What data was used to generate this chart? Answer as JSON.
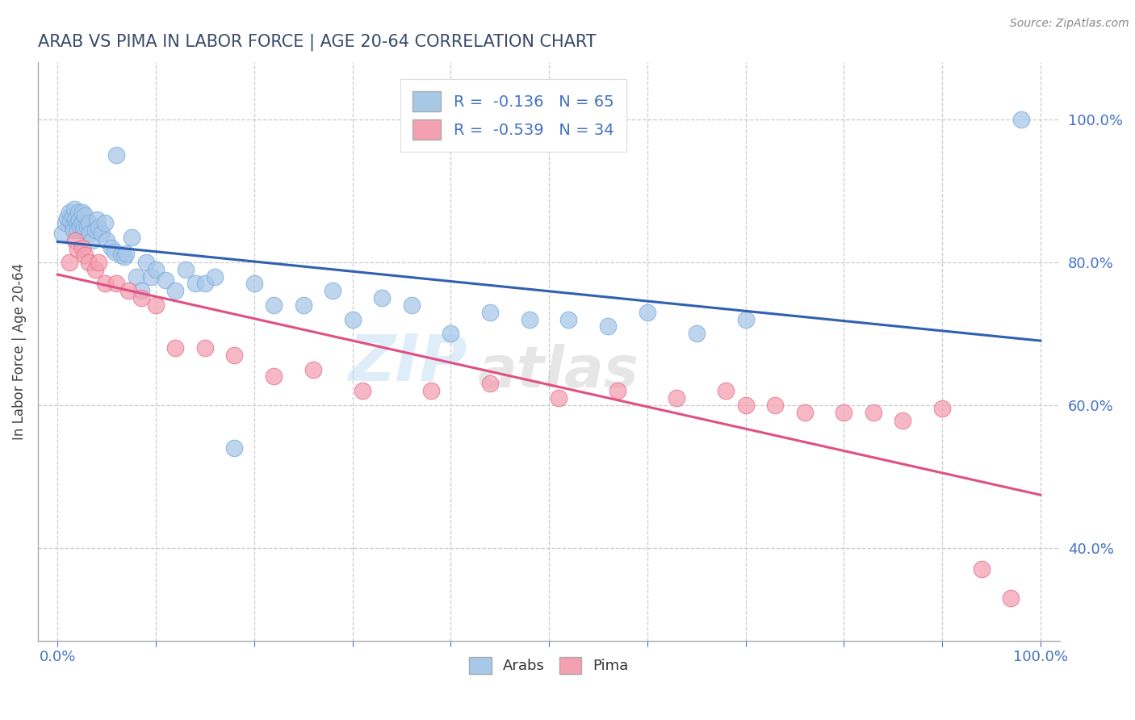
{
  "title": "ARAB VS PIMA IN LABOR FORCE | AGE 20-64 CORRELATION CHART",
  "source": "Source: ZipAtlas.com",
  "ylabel": "In Labor Force | Age 20-64",
  "xlim": [
    -0.02,
    1.02
  ],
  "ylim": [
    0.27,
    1.08
  ],
  "arab_R": -0.136,
  "arab_N": 65,
  "pima_R": -0.539,
  "pima_N": 34,
  "arab_color": "#a8c8e8",
  "pima_color": "#f4a0b0",
  "arab_edge_color": "#7aace0",
  "pima_edge_color": "#e87090",
  "arab_line_color": "#3060b0",
  "pima_line_color": "#e05080",
  "background_color": "#ffffff",
  "grid_color": "#cccccc",
  "title_color": "#3a4a6a",
  "axis_label_color": "#444444",
  "tick_label_color": "#4472c4",
  "arab_x": [
    0.005,
    0.008,
    0.01,
    0.012,
    0.013,
    0.015,
    0.015,
    0.016,
    0.017,
    0.018,
    0.02,
    0.02,
    0.021,
    0.022,
    0.023,
    0.025,
    0.025,
    0.026,
    0.027,
    0.028,
    0.03,
    0.032,
    0.033,
    0.035,
    0.038,
    0.04,
    0.042,
    0.045,
    0.048,
    0.05,
    0.055,
    0.058,
    0.06,
    0.065,
    0.068,
    0.07,
    0.075,
    0.08,
    0.085,
    0.09,
    0.095,
    0.1,
    0.11,
    0.12,
    0.13,
    0.14,
    0.15,
    0.16,
    0.18,
    0.2,
    0.22,
    0.25,
    0.28,
    0.3,
    0.33,
    0.36,
    0.4,
    0.44,
    0.48,
    0.52,
    0.56,
    0.6,
    0.65,
    0.7,
    0.98
  ],
  "arab_y": [
    0.84,
    0.855,
    0.862,
    0.87,
    0.858,
    0.85,
    0.865,
    0.845,
    0.875,
    0.86,
    0.855,
    0.845,
    0.87,
    0.86,
    0.85,
    0.855,
    0.87,
    0.845,
    0.85,
    0.865,
    0.85,
    0.855,
    0.84,
    0.83,
    0.845,
    0.86,
    0.848,
    0.84,
    0.855,
    0.83,
    0.82,
    0.815,
    0.95,
    0.81,
    0.808,
    0.812,
    0.835,
    0.78,
    0.76,
    0.8,
    0.78,
    0.79,
    0.775,
    0.76,
    0.79,
    0.77,
    0.77,
    0.78,
    0.54,
    0.77,
    0.74,
    0.74,
    0.76,
    0.72,
    0.75,
    0.74,
    0.7,
    0.73,
    0.72,
    0.72,
    0.71,
    0.73,
    0.7,
    0.72,
    1.0
  ],
  "pima_x": [
    0.012,
    0.018,
    0.02,
    0.025,
    0.028,
    0.032,
    0.038,
    0.042,
    0.048,
    0.06,
    0.072,
    0.085,
    0.1,
    0.12,
    0.15,
    0.18,
    0.22,
    0.26,
    0.31,
    0.38,
    0.44,
    0.51,
    0.57,
    0.63,
    0.68,
    0.7,
    0.73,
    0.76,
    0.8,
    0.83,
    0.86,
    0.9,
    0.94,
    0.97
  ],
  "pima_y": [
    0.8,
    0.83,
    0.818,
    0.82,
    0.81,
    0.8,
    0.79,
    0.8,
    0.77,
    0.77,
    0.76,
    0.75,
    0.74,
    0.68,
    0.68,
    0.67,
    0.64,
    0.65,
    0.62,
    0.62,
    0.63,
    0.61,
    0.62,
    0.61,
    0.62,
    0.6,
    0.6,
    0.59,
    0.59,
    0.59,
    0.578,
    0.595,
    0.37,
    0.33
  ],
  "legend_arab_label": "Arabs",
  "legend_pima_label": "Pima",
  "yticks_right": [
    0.4,
    0.6,
    0.8,
    1.0
  ],
  "ytick_right_labels": [
    "40.0%",
    "60.0%",
    "80.0%",
    "100.0%"
  ],
  "xticks": [
    0.0,
    0.1,
    0.2,
    0.3,
    0.4,
    0.5,
    0.6,
    0.7,
    0.8,
    0.9,
    1.0
  ],
  "xtick_labels_show": [
    "0.0%",
    "",
    "",
    "",
    "",
    "",
    "",
    "",
    "",
    "",
    "100.0%"
  ],
  "watermark_line1": "ZIP",
  "watermark_line2": "atlas"
}
